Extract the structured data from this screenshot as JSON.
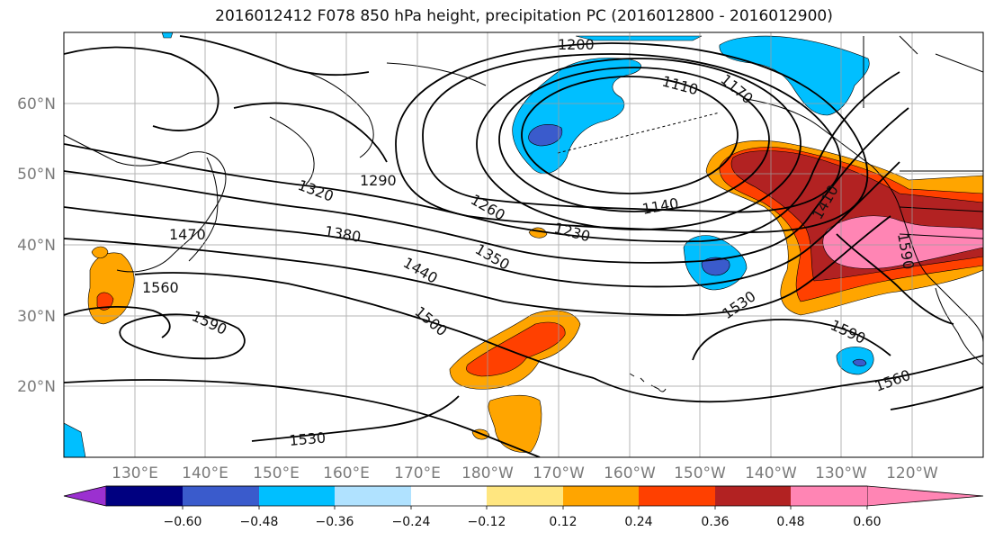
{
  "title": "2016012412 F078 850 hPa height, precipitation PC (2016012800 - 2016012900)",
  "map": {
    "lon_labels": [
      "130°E",
      "140°E",
      "150°E",
      "160°E",
      "170°E",
      "180°W",
      "170°W",
      "160°W",
      "150°W",
      "140°W",
      "130°W",
      "120°W"
    ],
    "lat_labels": [
      "60°N",
      "50°N",
      "40°N",
      "30°N",
      "20°N"
    ],
    "contour_labels": [
      "1200",
      "1110",
      "1170",
      "1290",
      "1320",
      "1260",
      "1140",
      "1230",
      "1380",
      "1350",
      "1470",
      "1440",
      "1410",
      "1560",
      "1590",
      "1500",
      "1530",
      "1590",
      "1590",
      "1560",
      "1530"
    ]
  },
  "colorbar": {
    "ticks": [
      "−0.60",
      "−0.48",
      "−0.36",
      "−0.24",
      "−0.12",
      "0.12",
      "0.24",
      "0.36",
      "0.48",
      "0.60"
    ],
    "colors": [
      "#9b30d0",
      "#000080",
      "#3a5bcc",
      "#00bfff",
      "#b0e2ff",
      "#ffffff",
      "#ffe680",
      "#ffa500",
      "#ff4000",
      "#b22222",
      "#ff85b4"
    ]
  }
}
